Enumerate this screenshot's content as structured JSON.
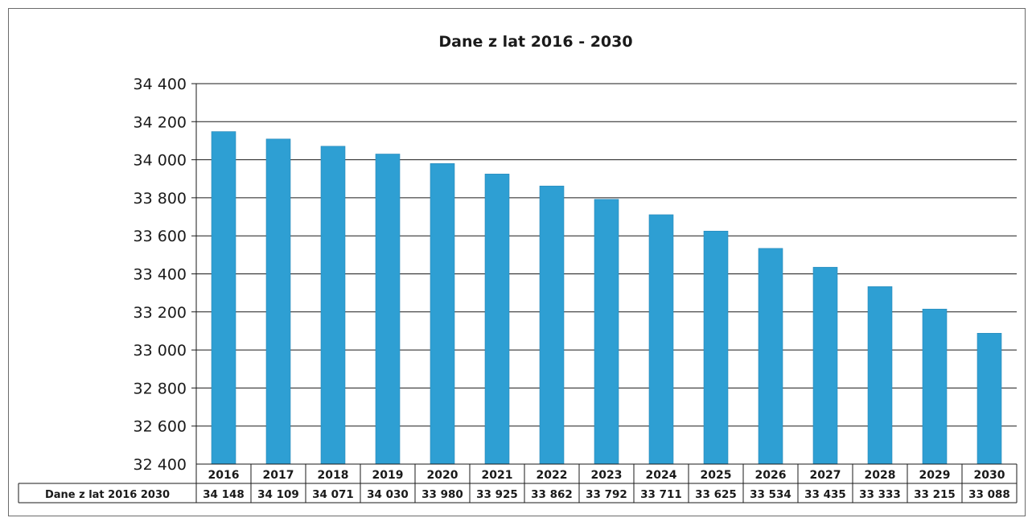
{
  "chart_data": {
    "type": "bar",
    "title": "Dane z lat 2016 - 2030",
    "categories": [
      "2016",
      "2017",
      "2018",
      "2019",
      "2020",
      "2021",
      "2022",
      "2023",
      "2024",
      "2025",
      "2026",
      "2027",
      "2028",
      "2029",
      "2030"
    ],
    "series": [
      {
        "name": "Dane z lat 2016 2030",
        "values": [
          34148,
          34109,
          34071,
          34030,
          33980,
          33925,
          33862,
          33792,
          33711,
          33625,
          33534,
          33435,
          33333,
          33215,
          33088
        ],
        "value_labels": [
          "34 148",
          "34 109",
          "34 071",
          "34 030",
          "33 980",
          "33 925",
          "33 862",
          "33 792",
          "33 711",
          "33 625",
          "33 534",
          "33 435",
          "33 333",
          "33 215",
          "33 088"
        ],
        "color": "#2e9fd3"
      }
    ],
    "ylim": [
      32400,
      34400
    ],
    "yticks": [
      32400,
      32600,
      32800,
      33000,
      33200,
      33400,
      33600,
      33800,
      34000,
      34200,
      34400
    ],
    "ytick_labels": [
      "32 400",
      "32 600",
      "32 800",
      "33 000",
      "33 200",
      "33 400",
      "33 600",
      "33 800",
      "34 000",
      "34 200",
      "34 400"
    ],
    "grid": true,
    "data_table": true,
    "xlabel": "",
    "ylabel": ""
  }
}
